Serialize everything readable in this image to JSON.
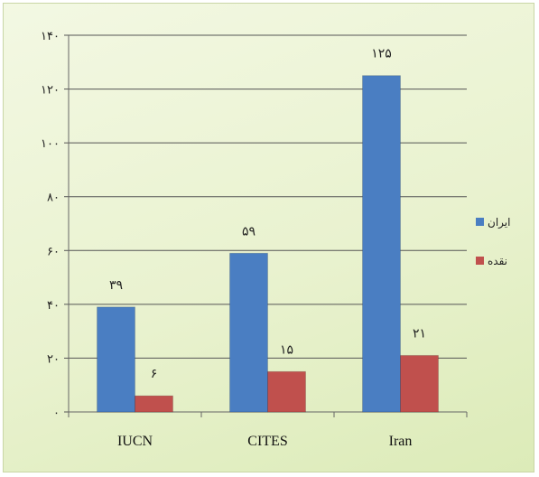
{
  "chart_data": {
    "type": "bar",
    "categories": [
      "IUCN",
      "CITES",
      "Iran"
    ],
    "series": [
      {
        "name": "ایران",
        "values": [
          39,
          59,
          125
        ],
        "labels": [
          "۳۹",
          "۵۹",
          "۱۲۵"
        ],
        "color": "#4a7ec2"
      },
      {
        "name": "نقده",
        "values": [
          6,
          15,
          21
        ],
        "labels": [
          "۶",
          "۱۵",
          "۲۱"
        ],
        "color": "#c0504d"
      }
    ],
    "ylim": [
      0,
      140
    ],
    "yticks": [
      0,
      20,
      40,
      60,
      80,
      100,
      120,
      140
    ],
    "ytick_labels": [
      "۰",
      "۲۰",
      "۴۰",
      "۶۰",
      "۸۰",
      "۱۰۰",
      "۱۲۰",
      "۱۴۰"
    ],
    "grid": true,
    "legend": "right"
  }
}
